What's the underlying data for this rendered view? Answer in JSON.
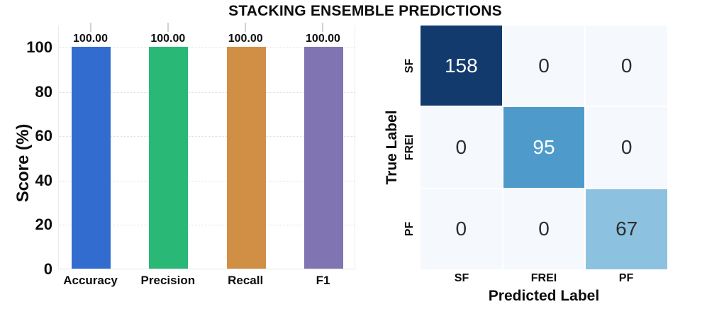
{
  "figure": {
    "title": "STACKING ENSEMBLE PREDICTIONS"
  },
  "chart_data": [
    {
      "type": "bar",
      "categories": [
        "Accuracy",
        "Precision",
        "Recall",
        "F1"
      ],
      "values": [
        100,
        100,
        100,
        100
      ],
      "value_labels": [
        "100.00",
        "100.00",
        "100.00",
        "100.00"
      ],
      "bar_colors": [
        "#336ccf",
        "#2ab877",
        "#d18e45",
        "#8174b3"
      ],
      "ylabel": "Score (%)",
      "xlabel": "",
      "yticks": [
        0,
        20,
        40,
        60,
        80,
        100
      ],
      "ylim": [
        0,
        100
      ],
      "grid": "dotted horizontal"
    },
    {
      "type": "heatmap",
      "title": "",
      "xlabel": "Predicted Label",
      "ylabel": "True Label",
      "x_categories": [
        "SF",
        "FREI",
        "PF"
      ],
      "y_categories": [
        "SF",
        "FREI",
        "PF"
      ],
      "values": [
        [
          158,
          0,
          0
        ],
        [
          0,
          95,
          0
        ],
        [
          0,
          0,
          67
        ]
      ],
      "cell_colors": [
        [
          "#123a6d",
          "#f5f8fd",
          "#f5f8fd"
        ],
        [
          "#f5f8fd",
          "#4e9bcb",
          "#f5f8fd"
        ],
        [
          "#f5f8fd",
          "#f5f8fd",
          "#8dc1e0"
        ]
      ],
      "text_colors": [
        [
          "#ffffff",
          "#2e2e2e",
          "#2e2e2e"
        ],
        [
          "#2e2e2e",
          "#ffffff",
          "#2e2e2e"
        ],
        [
          "#2e2e2e",
          "#2e2e2e",
          "#2e2e2e"
        ]
      ],
      "colormap": "Blues"
    }
  ]
}
